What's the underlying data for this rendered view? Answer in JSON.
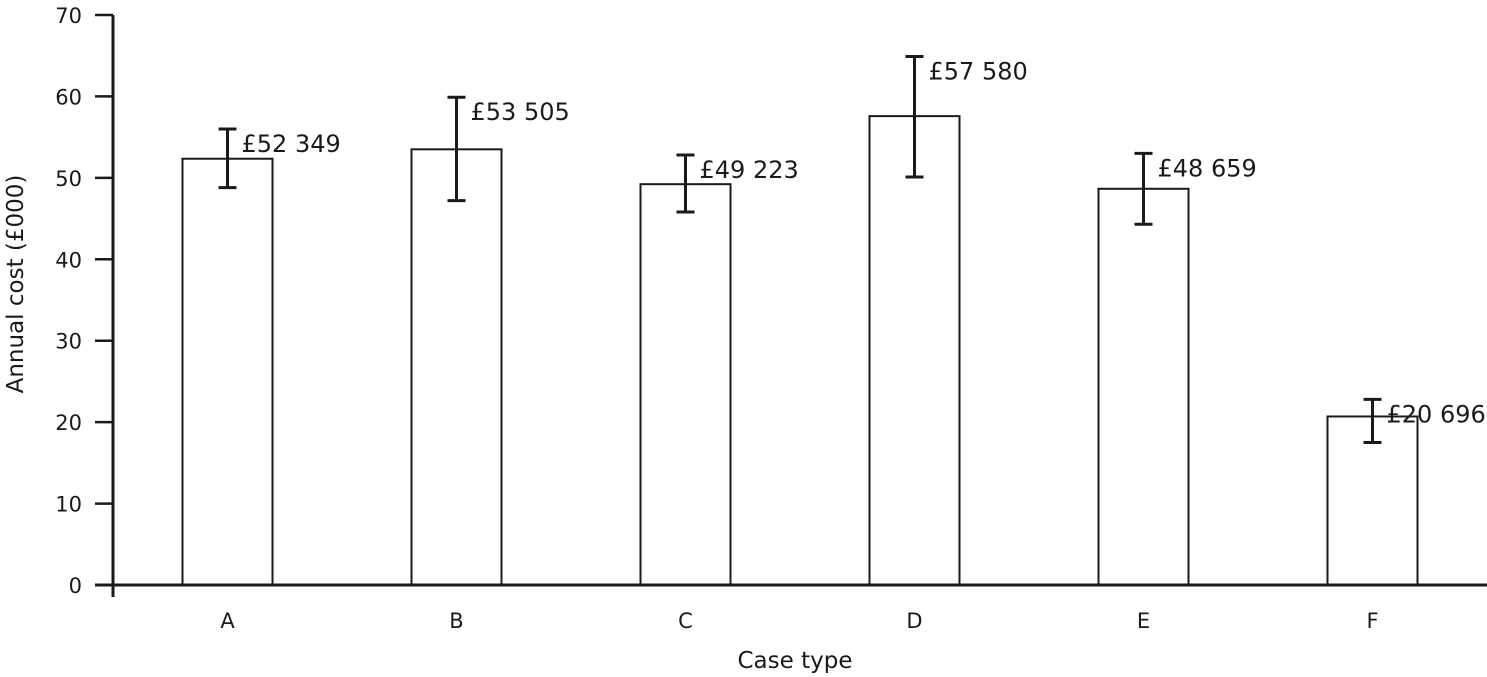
{
  "chart_data": {
    "type": "bar",
    "title": "",
    "xlabel": "Case type",
    "ylabel": "Annual cost (£000)",
    "categories": [
      "A",
      "B",
      "C",
      "D",
      "E",
      "F"
    ],
    "values": [
      52.349,
      53.505,
      49.223,
      57.58,
      48.659,
      20.696
    ],
    "error_low": [
      48.8,
      47.2,
      45.8,
      50.1,
      44.3,
      17.5
    ],
    "error_high": [
      56.0,
      59.9,
      52.8,
      64.9,
      53.0,
      22.8
    ],
    "data_labels": [
      "£52 349",
      "£53 505",
      "£49 223",
      "£57 580",
      "£48 659",
      "£20 696"
    ],
    "ylim": [
      0,
      70
    ],
    "yticks": [
      "0",
      "10",
      "20",
      "30",
      "40",
      "50",
      "60",
      "70"
    ],
    "grid": false,
    "legend": "none",
    "colors": {
      "bar_fill": "#ffffff",
      "bar_stroke": "#1a1a1a",
      "axis": "#1a1a1a",
      "error_bar": "#1a1a1a"
    }
  }
}
